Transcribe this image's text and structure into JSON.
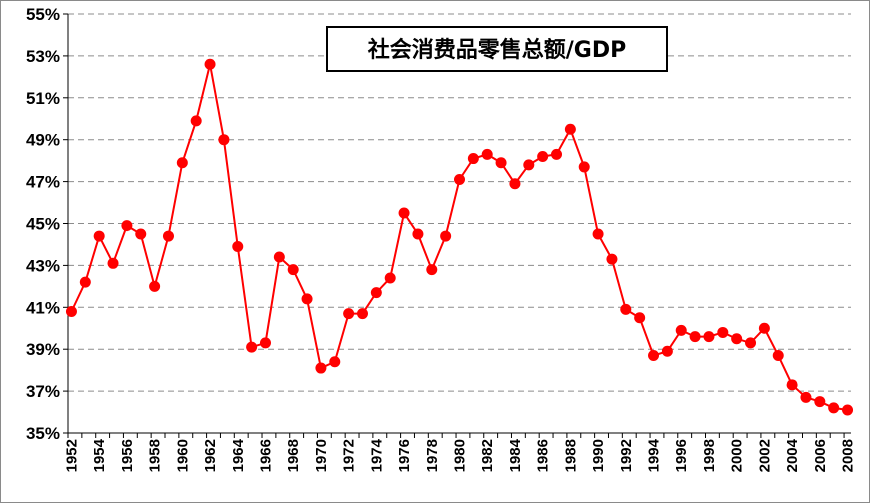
{
  "chart_data": {
    "type": "line",
    "title": "社会消费品零售总额/GDP",
    "xlabel": "",
    "ylabel": "",
    "ylim": [
      35,
      55
    ],
    "yticks": [
      "35%",
      "37%",
      "39%",
      "41%",
      "43%",
      "45%",
      "47%",
      "49%",
      "51%",
      "53%",
      "55%"
    ],
    "xlim": [
      1952,
      2008
    ],
    "xtick_labels": [
      "1952",
      "1954",
      "1956",
      "1958",
      "1960",
      "1962",
      "1964",
      "1966",
      "1968",
      "1970",
      "1972",
      "1974",
      "1976",
      "1978",
      "1980",
      "1982",
      "1984",
      "1986",
      "1988",
      "1990",
      "1992",
      "1994",
      "1996",
      "1998",
      "2000",
      "2002",
      "2004",
      "2006",
      "2008"
    ],
    "grid": true,
    "legend": false,
    "colors": {
      "series": "#ff0000",
      "grid": "#8c8c8c"
    },
    "series": [
      {
        "x": [
          1952,
          1953,
          1954,
          1955,
          1956,
          1957,
          1958,
          1959,
          1960,
          1961,
          1962,
          1963,
          1964,
          1965,
          1966,
          1967,
          1968,
          1969,
          1970,
          1971,
          1972,
          1973,
          1974,
          1975,
          1976,
          1977,
          1978,
          1979,
          1980,
          1981,
          1982,
          1983,
          1984,
          1985,
          1986,
          1987,
          1988,
          1989,
          1990,
          1991,
          1992,
          1993,
          1994,
          1995,
          1996,
          1997,
          1998,
          1999,
          2000,
          2001,
          2002,
          2003,
          2004,
          2005,
          2006,
          2007,
          2008
        ],
        "values": [
          40.8,
          42.2,
          44.4,
          43.1,
          44.9,
          44.5,
          42.0,
          44.4,
          47.9,
          49.9,
          52.6,
          49.0,
          43.9,
          39.1,
          39.3,
          43.4,
          42.8,
          41.4,
          38.1,
          38.4,
          40.7,
          40.7,
          41.7,
          42.4,
          45.5,
          44.5,
          42.8,
          44.4,
          47.1,
          48.1,
          48.3,
          47.9,
          46.9,
          47.8,
          48.2,
          48.3,
          49.5,
          47.7,
          44.5,
          43.3,
          40.9,
          40.5,
          38.7,
          38.9,
          39.9,
          39.6,
          39.6,
          39.8,
          39.5,
          39.3,
          40.0,
          38.7,
          37.3,
          36.7,
          36.5,
          36.2,
          36.1
        ]
      }
    ]
  }
}
